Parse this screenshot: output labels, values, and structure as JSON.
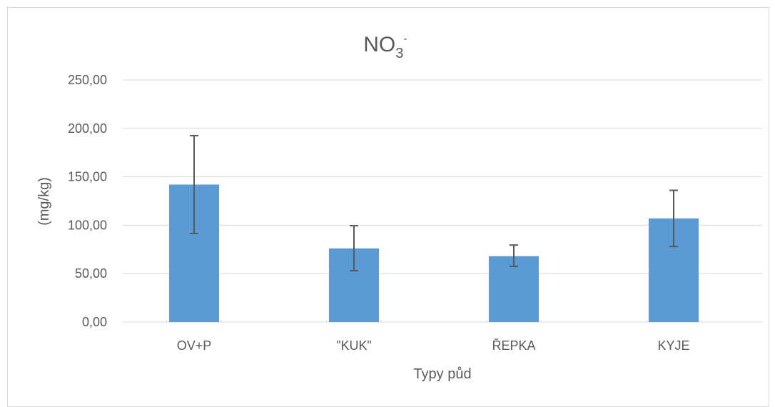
{
  "chart_data": {
    "type": "bar",
    "title": "NO",
    "title_subscript": "3",
    "title_superscript": "-",
    "xlabel": "Typy půd",
    "ylabel": "(mg/kg)",
    "categories": [
      "OV+P",
      "\"KUK\"",
      "ŘEPKA",
      "KYJE"
    ],
    "series": [
      {
        "values": [
          142.0,
          76.0,
          68.0,
          107.0
        ],
        "error_plus": [
          50.5,
          23.5,
          11.5,
          29.0
        ],
        "error_minus": [
          50.5,
          23.0,
          10.5,
          29.0
        ],
        "color": "#5b9bd5"
      }
    ],
    "ylim": [
      0,
      250
    ],
    "yticks": [
      0,
      50,
      100,
      150,
      200,
      250
    ],
    "ytick_labels": [
      "0,00",
      "50,00",
      "100,00",
      "150,00",
      "200,00",
      "250,00"
    ],
    "grid": true,
    "legend": "none",
    "gridline_color": "#d9d9d9",
    "errorbar_color": "#595959"
  }
}
